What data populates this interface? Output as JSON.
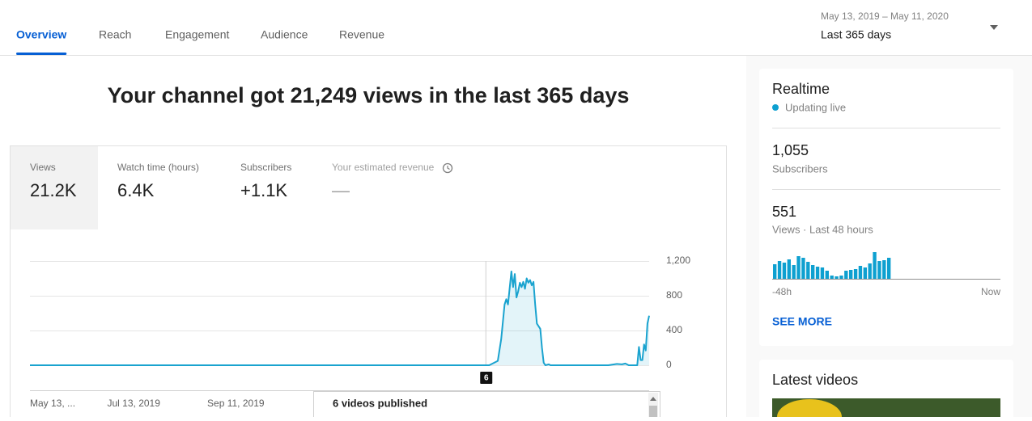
{
  "nav": {
    "tabs": [
      "Overview",
      "Reach",
      "Engagement",
      "Audience",
      "Revenue"
    ],
    "active": 0
  },
  "date_range": {
    "range": "May 13, 2019 – May 11, 2020",
    "label": "Last 365 days"
  },
  "headline": "Your channel got 21,249 views in the last 365 days",
  "metrics": [
    {
      "label": "Views",
      "value": "21.2K"
    },
    {
      "label": "Watch time (hours)",
      "value": "6.4K"
    },
    {
      "label": "Subscribers",
      "value": "+1.1K"
    },
    {
      "label": "Your estimated revenue",
      "value": "—"
    }
  ],
  "views_chart": {
    "type": "line",
    "color": "#1aa3cf",
    "x": [
      0,
      270,
      275,
      277,
      279,
      280,
      281,
      283,
      284,
      285,
      286,
      287,
      288,
      289,
      290,
      291,
      292,
      293,
      294,
      295,
      296,
      297,
      298,
      300,
      301,
      302,
      303,
      305,
      306,
      340,
      345,
      348,
      350,
      352,
      357,
      358,
      359,
      360,
      361,
      362,
      363,
      364
    ],
    "values": [
      0,
      0,
      50,
      300,
      700,
      760,
      700,
      1080,
      900,
      1050,
      780,
      850,
      950,
      900,
      960,
      880,
      1000,
      950,
      980,
      920,
      960,
      700,
      480,
      420,
      200,
      30,
      0,
      10,
      0,
      0,
      15,
      10,
      20,
      0,
      0,
      210,
      60,
      60,
      240,
      170,
      480,
      570
    ],
    "xlim": [
      0,
      364
    ],
    "ylim": [
      0,
      1200
    ],
    "yticks": [
      0,
      400,
      800,
      {
        "value": 1200,
        "label": "1,200"
      }
    ],
    "xticks": [
      {
        "value": 0,
        "label": "May 13, ..."
      },
      {
        "value": 61,
        "label": "Jul 13, 2019"
      },
      {
        "value": 121,
        "label": "Sep 11, 2019"
      }
    ],
    "marker": {
      "x": 268,
      "label": "6"
    },
    "grid": true
  },
  "tooltip": {
    "title": "6 videos published"
  },
  "realtime": {
    "title": "Realtime",
    "status": "Updating live",
    "subscribers": {
      "value": "1,055",
      "label": "Subscribers"
    },
    "views": {
      "value": "551",
      "label": "Views · Last 48 hours"
    },
    "chart": {
      "type": "bar",
      "color": "#0ea0d0",
      "ylim": [
        0,
        40
      ],
      "values": [
        18,
        22,
        20,
        24,
        17,
        28,
        26,
        21,
        17,
        15,
        14,
        10,
        4,
        3,
        4,
        10,
        11,
        12,
        16,
        14,
        19,
        33,
        22,
        23,
        26
      ],
      "start": "-48h",
      "end": "Now"
    },
    "link": "SEE MORE"
  },
  "latest": {
    "title": "Latest videos"
  }
}
